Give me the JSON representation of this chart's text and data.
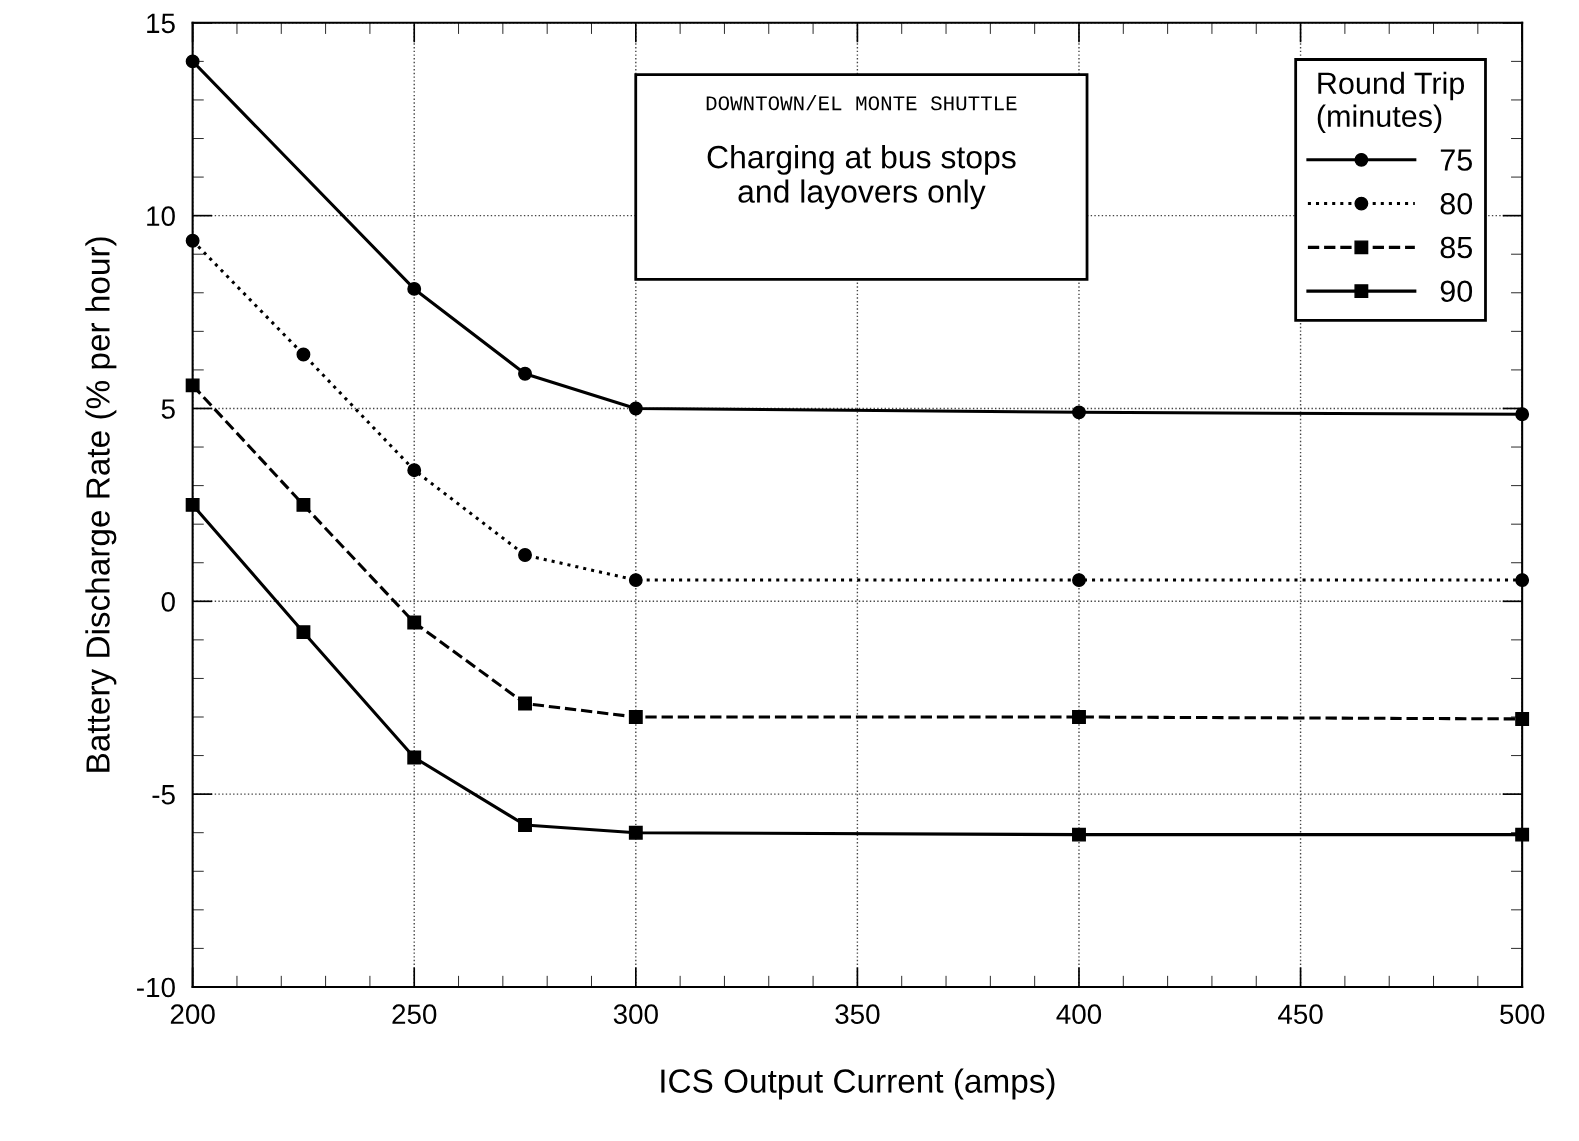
{
  "chart_data": {
    "type": "line",
    "xlabel": "ICS Output Current (amps)",
    "ylabel": "Battery Discharge Rate (% per hour)",
    "legend_title": "Round Trip\n(minutes)",
    "legend": "top right",
    "grid": true,
    "x": [
      200,
      225,
      250,
      275,
      300,
      400,
      500
    ],
    "xlim": [
      200,
      500
    ],
    "xticks": [
      200,
      250,
      300,
      350,
      400,
      450,
      500
    ],
    "ylim": [
      -10,
      15
    ],
    "yticks": [
      -10,
      -5,
      0,
      5,
      10,
      15
    ],
    "annotations": [
      "DOWNTOWN/EL MONTE SHUTTLE",
      "Charging at bus stops\nand layovers only"
    ],
    "series": [
      {
        "name": "75",
        "color": "#000000",
        "marker": "circle",
        "line_style": "solid",
        "x": [
          200,
          250,
          275,
          300,
          400,
          500
        ],
        "values": [
          14.0,
          8.1,
          5.9,
          5.0,
          4.9,
          4.85
        ]
      },
      {
        "name": "80",
        "color": "#000000",
        "marker": "circle",
        "line_style": "dotted",
        "values": [
          9.35,
          6.4,
          3.4,
          1.2,
          0.55,
          0.55,
          0.55
        ]
      },
      {
        "name": "85",
        "color": "#000000",
        "marker": "square",
        "line_style": "dashed",
        "values": [
          5.6,
          2.5,
          -0.55,
          -2.65,
          -3.0,
          -3.0,
          -3.05
        ]
      },
      {
        "name": "90",
        "color": "#000000",
        "marker": "square",
        "line_style": "solid",
        "values": [
          2.5,
          -0.8,
          -4.05,
          -5.8,
          -6.0,
          -6.05,
          -6.05
        ]
      }
    ]
  }
}
